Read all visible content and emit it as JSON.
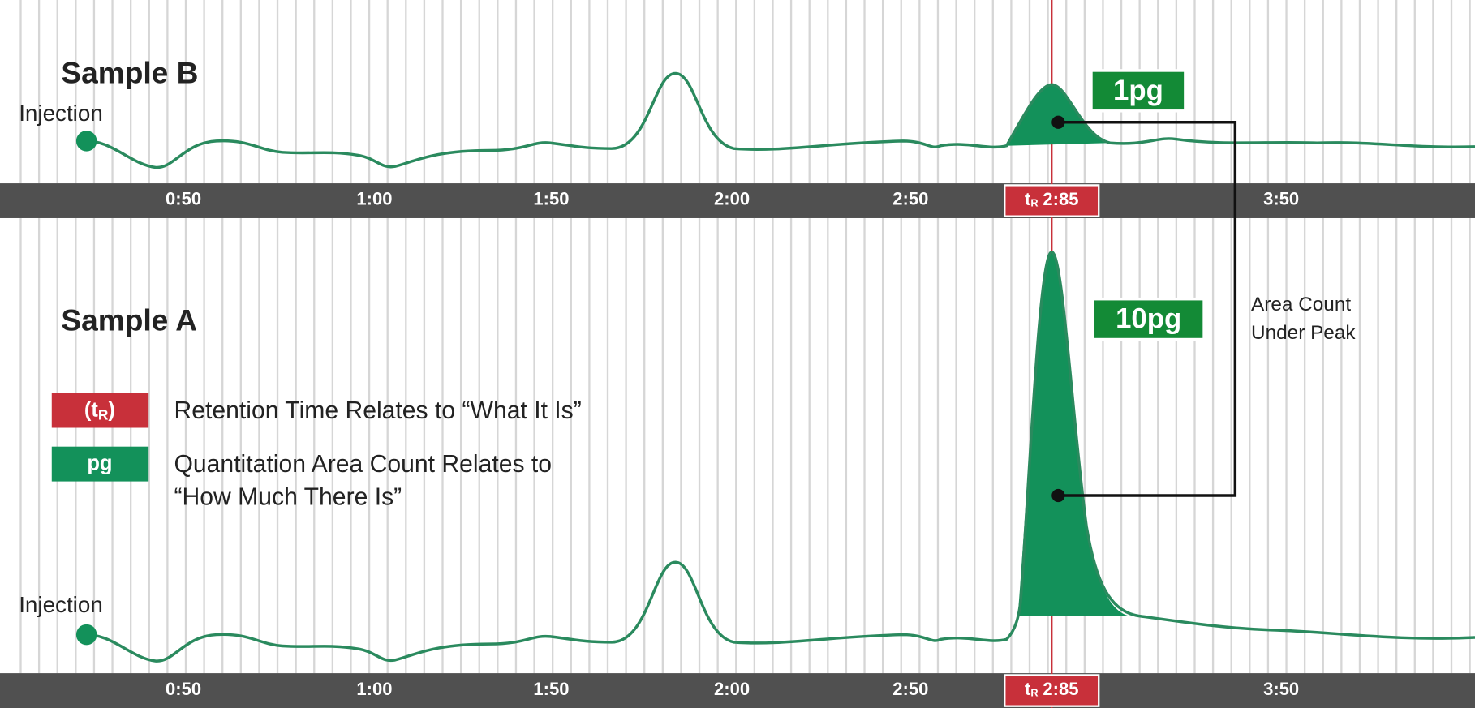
{
  "panels": [
    {
      "title": "Sample B",
      "injection": "Injection",
      "amount": "1pg",
      "axis_labels": [
        "0:50",
        "1:00",
        "1:50",
        "2:00",
        "2:50",
        "3:50"
      ],
      "retention_marker": {
        "symbol": "t",
        "subscript": "R",
        "label": "2:85"
      }
    },
    {
      "title": "Sample A",
      "injection": "Injection",
      "amount": "10pg",
      "axis_labels": [
        "0:50",
        "1:00",
        "1:50",
        "2:00",
        "2:50",
        "3:50"
      ],
      "retention_marker": {
        "symbol": "t",
        "subscript": "R",
        "label": "2:85"
      }
    }
  ],
  "annotation": [
    "Area Count",
    "Under Peak"
  ],
  "legend": [
    {
      "badge": {
        "open": "(",
        "symbol": "t",
        "subscript": "R",
        "close": ")"
      },
      "lines": [
        "Retention Time Relates to “What It Is”"
      ]
    },
    {
      "badge": "pg",
      "lines": [
        "Quantitation Area Count Relates to",
        "“How Much There Is”"
      ]
    }
  ]
}
